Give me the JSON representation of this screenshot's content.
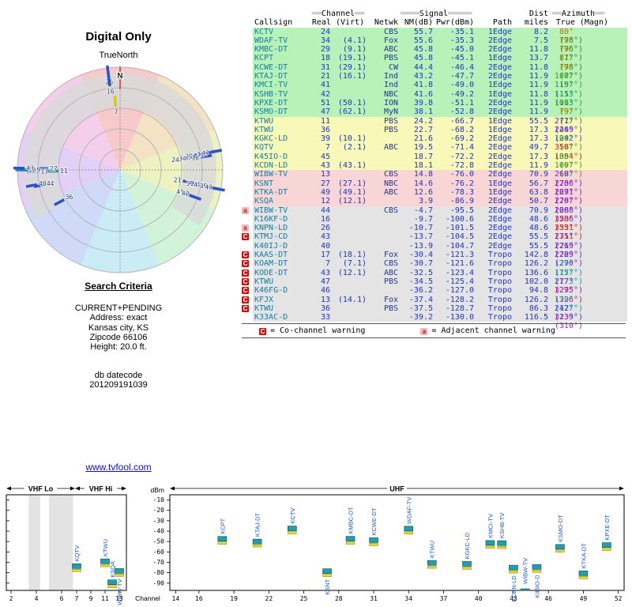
{
  "title": "Digital Only",
  "link": "www.tvfool.com",
  "search_criteria": {
    "heading": "Search Criteria",
    "lines": [
      "CURRENT+PENDING",
      "Address: exact",
      "Kansas city, KS",
      "Zipcode 66106",
      "Height: 20.0 ft."
    ],
    "datecode_label": "db datecode",
    "datecode": "201209191039"
  },
  "colors": {
    "callsign": "#0b7fae",
    "numeric": "#2233cc",
    "network": "#223399",
    "zones": {
      "g": "#b8f2b8",
      "y": "#f8f8b8",
      "p": "#f8d6d6",
      "e": "#e4e4e4"
    },
    "warn_red": "#cc1111",
    "warn_pink": "#f2b8b8",
    "bar_teal": "#1f9faf",
    "bar_yellow": "#e6d825",
    "marker_blue": "#2a52cc",
    "label_blue": "#1a56c4",
    "link_blue": "#1111cc",
    "header_fill_gray": "#9a9a9a"
  },
  "radar": {
    "true_north_label": "TrueNorth",
    "north_label": "N",
    "rings": 5,
    "ring_gray": "#d9d9d9",
    "sector_colors": [
      "#f6caca",
      "#f3e3c3",
      "#ecf3c0",
      "#d2f3d8",
      "#c9ecf6",
      "#cfd9f8",
      "#e2d0f6",
      "#f3cfec"
    ],
    "markers": [
      {
        "ch": "26",
        "az": 353,
        "r": 0.97
      },
      {
        "ch": "16",
        "az": 353,
        "r": 0.875
      },
      {
        "ch": "7",
        "az": 356,
        "r": 0.67,
        "color": "#d6c820"
      },
      {
        "ch": "24",
        "az": 80,
        "r": 0.655
      },
      {
        "ch": "34",
        "az": 80,
        "r": 0.725
      },
      {
        "ch": "29",
        "az": 79,
        "r": 0.79
      },
      {
        "ch": "18",
        "az": 81,
        "r": 0.85
      },
      {
        "ch": "31",
        "az": 79,
        "r": 0.905
      },
      {
        "ch": "47",
        "az": 79,
        "r": 0.955
      },
      {
        "ch": "21",
        "az": 100,
        "r": 0.675
      },
      {
        "ch": "41",
        "az": 110,
        "r": 0.73
      },
      {
        "ch": "42",
        "az": 110,
        "r": 0.785
      },
      {
        "ch": "51",
        "az": 101,
        "r": 0.8
      },
      {
        "ch": "45",
        "az": 101,
        "r": 0.875
      },
      {
        "ch": "39",
        "az": 101,
        "r": 0.935
      },
      {
        "ch": "43",
        "az": 101,
        "r": 0.985
      },
      {
        "ch": "11",
        "az": 269,
        "r": 0.655,
        "color": "#2292a8"
      },
      {
        "ch": "27",
        "az": 271,
        "r": 0.755
      },
      {
        "ch": "13",
        "az": 269,
        "r": 0.845,
        "color": "#2292a8"
      },
      {
        "ch": "49",
        "az": 270,
        "r": 0.92
      },
      {
        "ch": "12",
        "az": 270,
        "r": 0.965,
        "color": "#2292a8"
      },
      {
        "ch": "43",
        "az": 271,
        "r": 0.99
      },
      {
        "ch": "44",
        "az": 259,
        "r": 0.8
      },
      {
        "ch": "40",
        "az": 260,
        "r": 0.875
      },
      {
        "ch": "36",
        "az": 242,
        "r": 0.67
      }
    ]
  },
  "table": {
    "groups": {
      "channel": {
        "pre": "══",
        "label": "Channel",
        "post": "══"
      },
      "signal": {
        "pre": "════",
        "label": "Signal",
        "post": "═════"
      },
      "dist": "Dist",
      "azimuth": {
        "pre": "══",
        "label": "Azimuth",
        "post": "══"
      }
    },
    "columns": [
      "Callsign",
      "Real (Virt)",
      "Netwk",
      "NM(dB)",
      "Pwr(dBm)",
      "Path",
      "miles",
      "True (Magn)"
    ],
    "legend": [
      {
        "mark": "C",
        "text": "= Co-channel warning"
      },
      {
        "mark": "a",
        "text": "= Adjacent channel warning"
      }
    ],
    "rows": [
      {
        "w": "",
        "c": "KCTV",
        "r": "24",
        "v": "",
        "n": "CBS",
        "nm": "55.7",
        "pw": "-35.1",
        "pa": "1Edge",
        "mi": "8.2",
        "t": "80°",
        "m": "(78°)",
        "z": "g",
        "tc": "#b07a00",
        "mc": "#2e8b22"
      },
      {
        "w": "",
        "c": "WDAF-TV",
        "r": "34",
        "v": "(4.1)",
        "n": "Fox",
        "nm": "55.6",
        "pw": "-35.3",
        "pa": "2Edge",
        "mi": "7.5",
        "t": "79°",
        "m": "(76°)",
        "z": "g",
        "tc": "#b07a00",
        "mc": "#2e8b22"
      },
      {
        "w": "",
        "c": "KMBC-DT",
        "r": "29",
        "v": "(9.1)",
        "n": "ABC",
        "nm": "45.8",
        "pw": "-45.0",
        "pa": "2Edge",
        "mi": "11.8",
        "t": "79°",
        "m": "(77°)",
        "z": "g",
        "tc": "#b07a00",
        "mc": "#2e8b22"
      },
      {
        "w": "",
        "c": "KCPT",
        "r": "18",
        "v": "(19.1)",
        "n": "PBS",
        "nm": "45.8",
        "pw": "-45.1",
        "pa": "1Edge",
        "mi": "13.7",
        "t": "81°",
        "m": "(78°)",
        "z": "g",
        "tc": "#b07a00",
        "mc": "#2e8b22"
      },
      {
        "w": "",
        "c": "KCWE-DT",
        "r": "31",
        "v": "(29.1)",
        "n": "CW",
        "nm": "44.4",
        "pw": "-46.4",
        "pa": "2Edge",
        "mi": "11.8",
        "t": "79°",
        "m": "(77°)",
        "z": "g",
        "tc": "#b07a00",
        "mc": "#2e8b22"
      },
      {
        "w": "",
        "c": "KTAJ-DT",
        "r": "21",
        "v": "(16.1)",
        "n": "Ind",
        "nm": "43.2",
        "pw": "-47.7",
        "pa": "2Edge",
        "mi": "11.9",
        "t": "100°",
        "m": "(97°)",
        "z": "g",
        "tc": "#3f9a28",
        "mc": "#3f9a28"
      },
      {
        "w": "",
        "c": "KMCI-TV",
        "r": "41",
        "v": "",
        "n": "Ind",
        "nm": "41.8",
        "pw": "-49.0",
        "pa": "1Edge",
        "mi": "11.9",
        "t": "115°",
        "m": "(113°)",
        "z": "g",
        "tc": "#1f9a6a",
        "mc": "#1f9a6a"
      },
      {
        "w": "",
        "c": "KSHB-TV",
        "r": "42",
        "v": "",
        "n": "NBC",
        "nm": "41.6",
        "pw": "-49.2",
        "pa": "1Edge",
        "mi": "11.8",
        "t": "115°",
        "m": "(113°)",
        "z": "g",
        "tc": "#1f9a6a",
        "mc": "#1f9a6a"
      },
      {
        "w": "",
        "c": "KPXE-DT",
        "r": "51",
        "v": "(50.1)",
        "n": "ION",
        "nm": "39.8",
        "pw": "-51.1",
        "pa": "2Edge",
        "mi": "11.9",
        "t": "100°",
        "m": "(97°)",
        "z": "g",
        "tc": "#3f9a28",
        "mc": "#3f9a28"
      },
      {
        "w": "",
        "c": "KSMO-DT",
        "r": "47",
        "v": "(62.1)",
        "n": "MyN",
        "nm": "38.1",
        "pw": "-52.8",
        "pa": "2Edge",
        "mi": "11.9",
        "t": "79°",
        "m": "(77°)",
        "z": "g",
        "tc": "#b07a00",
        "mc": "#2e8b22"
      },
      {
        "w": "",
        "c": "KTWU",
        "r": "11",
        "v": "",
        "n": "PBS",
        "nm": "24.2",
        "pw": "-66.7",
        "pa": "1Edge",
        "mi": "55.5",
        "t": "271°",
        "m": "(269°)",
        "z": "y",
        "tc": "#7a1fd0",
        "mc": "#7a1fd0"
      },
      {
        "w": "",
        "c": "KTWU",
        "r": "36",
        "v": "",
        "n": "PBS",
        "nm": "22.7",
        "pw": "-68.2",
        "pa": "1Edge",
        "mi": "17.3",
        "t": "244°",
        "m": "(242°)",
        "z": "y",
        "tc": "#4438e0",
        "mc": "#4438e0"
      },
      {
        "w": "",
        "c": "KGKC-LD",
        "r": "39",
        "v": "(10.1)",
        "n": "",
        "nm": "21.6",
        "pw": "-69.2",
        "pa": "2Edge",
        "mi": "17.3",
        "t": "100°",
        "m": "(97°)",
        "z": "y",
        "tc": "#3f9a28",
        "mc": "#3f9a28"
      },
      {
        "w": "",
        "c": "KQTV",
        "r": "7",
        "v": "(2.1)",
        "n": "ABC",
        "nm": "19.5",
        "pw": "-71.4",
        "pa": "2Edge",
        "mi": "49.7",
        "t": "356°",
        "m": "(354°)",
        "z": "y",
        "tc": "#d42222",
        "mc": "#d42222"
      },
      {
        "w": "",
        "c": "K45IO-D",
        "r": "45",
        "v": "",
        "n": "",
        "nm": "18.7",
        "pw": "-72.2",
        "pa": "2Edge",
        "mi": "17.3",
        "t": "100°",
        "m": "(97°)",
        "z": "y",
        "tc": "#3f9a28",
        "mc": "#3f9a28"
      },
      {
        "w": "",
        "c": "KCDN-LD",
        "r": "43",
        "v": "(43.1)",
        "n": "",
        "nm": "18.1",
        "pw": "-72.8",
        "pa": "2Edge",
        "mi": "11.9",
        "t": "100°",
        "m": "(97°)",
        "z": "y",
        "tc": "#3f9a28",
        "mc": "#3f9a28"
      },
      {
        "w": "",
        "c": "WIBW-TV",
        "r": "13",
        "v": "",
        "n": "CBS",
        "nm": "14.8",
        "pw": "-76.0",
        "pa": "2Edge",
        "mi": "70.9",
        "t": "268°",
        "m": "(266°)",
        "z": "p",
        "tc": "#7a1fd0",
        "mc": "#7a1fd0"
      },
      {
        "w": "",
        "c": "KSNT",
        "r": "27",
        "v": "(27.1)",
        "n": "NBC",
        "nm": "14.6",
        "pw": "-76.2",
        "pa": "1Edge",
        "mi": "56.7",
        "t": "273°",
        "m": "(271°)",
        "z": "p",
        "tc": "#7a1fd0",
        "mc": "#7a1fd0"
      },
      {
        "w": "",
        "c": "KTKA-DT",
        "r": "49",
        "v": "(49.1)",
        "n": "ABC",
        "nm": "12.6",
        "pw": "-78.3",
        "pa": "1Edge",
        "mi": "63.8",
        "t": "269°",
        "m": "(267°)",
        "z": "p",
        "tc": "#7a1fd0",
        "mc": "#7a1fd0"
      },
      {
        "w": "",
        "c": "KSQA",
        "r": "12",
        "v": "(12.1)",
        "n": "",
        "nm": "3.9",
        "pw": "-86.9",
        "pa": "2Edge",
        "mi": "50.7",
        "t": "270°",
        "m": "(268°)",
        "z": "p",
        "tc": "#7a1fd0",
        "mc": "#7a1fd0"
      },
      {
        "w": "a",
        "c": "WIBW-TV",
        "r": "44",
        "v": "",
        "n": "CBS",
        "nm": "-4.7",
        "pw": "-95.5",
        "pa": "2Edge",
        "mi": "70.9",
        "t": "268°",
        "m": "(266°)",
        "z": "e",
        "tc": "#7a1fd0",
        "mc": "#7a1fd0"
      },
      {
        "w": "",
        "c": "K16KF-D",
        "r": "16",
        "v": "",
        "n": "",
        "nm": "-9.7",
        "pw": "-100.6",
        "pa": "2Edge",
        "mi": "48.6",
        "t": "353°",
        "m": "(351°)",
        "z": "e",
        "tc": "#d42222",
        "mc": "#d42222"
      },
      {
        "w": "a",
        "c": "KNPN-LD",
        "r": "26",
        "v": "",
        "n": "",
        "nm": "-10.7",
        "pw": "-101.5",
        "pa": "2Edge",
        "mi": "48.6",
        "t": "353°",
        "m": "(351°)",
        "z": "e",
        "tc": "#d42222",
        "mc": "#d42222"
      },
      {
        "w": "C",
        "c": "KTMJ-CD",
        "r": "43",
        "v": "",
        "n": "",
        "nm": "-13.7",
        "pw": "-104.5",
        "pa": "2Edge",
        "mi": "55.5",
        "t": "271°",
        "m": "(269°)",
        "z": "e",
        "tc": "#7a1fd0",
        "mc": "#7a1fd0"
      },
      {
        "w": "",
        "c": "K40IJ-D",
        "r": "40",
        "v": "",
        "n": "",
        "nm": "-13.9",
        "pw": "-104.7",
        "pa": "2Edge",
        "mi": "55.5",
        "t": "271°",
        "m": "(269°)",
        "z": "e",
        "tc": "#7a1fd0",
        "mc": "#7a1fd0"
      },
      {
        "w": "C",
        "c": "KAAS-DT",
        "r": "17",
        "v": "(18.1)",
        "n": "Fox",
        "nm": "-30.4",
        "pw": "-121.3",
        "pa": "Tropo",
        "mi": "142.8",
        "t": "272°",
        "m": "(270°)",
        "z": "e",
        "tc": "#7a1fd0",
        "mc": "#7a1fd0"
      },
      {
        "w": "C",
        "c": "KOAM-DT",
        "r": "7",
        "v": "(7.1)",
        "n": "CBS",
        "nm": "-30.7",
        "pw": "-121.6",
        "pa": "Tropo",
        "mi": "126.2",
        "t": "179°",
        "m": "(177°)",
        "z": "e",
        "tc": "#0f9a9a",
        "mc": "#0f9a9a"
      },
      {
        "w": "C",
        "c": "KODE-DT",
        "r": "43",
        "v": "(12.1)",
        "n": "ABC",
        "nm": "-32.5",
        "pw": "-123.4",
        "pa": "Tropo",
        "mi": "136.6",
        "t": "175°",
        "m": "(173°)",
        "z": "e",
        "tc": "#0f9a9a",
        "mc": "#0f9a9a"
      },
      {
        "w": "C",
        "c": "KTWU",
        "r": "47",
        "v": "",
        "n": "PBS",
        "nm": "-34.5",
        "pw": "-125.4",
        "pa": "Tropo",
        "mi": "102.0",
        "t": "277°",
        "m": "(275°)",
        "z": "e",
        "tc": "#7a1fd0",
        "mc": "#7a1fd0"
      },
      {
        "w": "C",
        "c": "K46FG-D",
        "r": "46",
        "v": "",
        "n": "",
        "nm": "-36.2",
        "pw": "-127.0",
        "pa": "Tropo",
        "mi": "94.8",
        "t": "329°",
        "m": "(326°)",
        "z": "e",
        "tc": "#c0207a",
        "mc": "#c0207a"
      },
      {
        "w": "C",
        "c": "KFJX",
        "r": "13",
        "v": "(14.1)",
        "n": "Fox",
        "nm": "-37.4",
        "pw": "-128.2",
        "pa": "Tropo",
        "mi": "126.2",
        "t": "179°",
        "m": "(177°)",
        "z": "e",
        "tc": "#0f9a9a",
        "mc": "#0f9a9a"
      },
      {
        "w": "C",
        "c": "KTWU",
        "r": "36",
        "v": "",
        "n": "PBS",
        "nm": "-37.5",
        "pw": "-128.7",
        "pa": "Tropo",
        "mi": "86.3",
        "t": "242°",
        "m": "(239°)",
        "z": "e",
        "tc": "#4438e0",
        "mc": "#4438e0"
      },
      {
        "w": "",
        "c": "K33AC-D",
        "r": "33",
        "v": "",
        "n": "",
        "nm": "-39.2",
        "pw": "-130.0",
        "pa": "Tropo",
        "mi": "116.5",
        "t": "313°",
        "m": "(310°)",
        "z": "e",
        "tc": "#b022b0",
        "mc": "#b022b0"
      }
    ]
  },
  "chart_data": {
    "type": "bar",
    "title": "Digital Only",
    "ylabel": "dBm",
    "xlabel": "Channel",
    "ylim": [
      -97,
      -5
    ],
    "y_ticks": [
      -10,
      -20,
      -30,
      -40,
      -50,
      -60,
      -70,
      -80,
      -90
    ],
    "bands": [
      {
        "label": "VHF Lo"
      },
      {
        "label": "VHF Hi"
      },
      {
        "label": "UHF"
      }
    ],
    "vhf_lo_ticks": [
      2,
      4,
      6
    ],
    "vhf_hi_ticks": [
      7,
      9,
      11,
      13
    ],
    "uhf_ticks": [
      14,
      16,
      19,
      22,
      25,
      28,
      31,
      34,
      37,
      40,
      43,
      46,
      49,
      52
    ],
    "gray_bands_lo": [
      [
        3.4,
        4.3
      ],
      [
        5.0,
        6.9
      ]
    ],
    "points": [
      {
        "callsign": "KQTV",
        "ch": 7,
        "dbm": -71.4
      },
      {
        "callsign": "KTWU",
        "ch": 11,
        "dbm": -66.7
      },
      {
        "callsign": "KSQA",
        "ch": 12,
        "dbm": -86.9
      },
      {
        "callsign": "WIBW-TV",
        "ch": 13,
        "dbm": -76.0,
        "label_below": true
      },
      {
        "callsign": "KCPT",
        "ch": 18,
        "dbm": -45.1
      },
      {
        "callsign": "KTAJ-DT",
        "ch": 21,
        "dbm": -47.7
      },
      {
        "callsign": "KCTV",
        "ch": 24,
        "dbm": -35.1
      },
      {
        "callsign": "KSNT",
        "ch": 27,
        "dbm": -76.2,
        "label_below": true
      },
      {
        "callsign": "KMBC-DT",
        "ch": 29,
        "dbm": -45.0
      },
      {
        "callsign": "KCWE-DT",
        "ch": 31,
        "dbm": -46.4
      },
      {
        "callsign": "WDAF-TV",
        "ch": 34,
        "dbm": -35.3
      },
      {
        "callsign": "KTWU",
        "ch": 36,
        "dbm": -68.2
      },
      {
        "callsign": "KGKC-LD",
        "ch": 39,
        "dbm": -69.2
      },
      {
        "callsign": "KMCI-TV",
        "ch": 41,
        "dbm": -49.0
      },
      {
        "callsign": "KSHB-TV",
        "ch": 42,
        "dbm": -49.2
      },
      {
        "callsign": "KCDN-LD",
        "ch": 43,
        "dbm": -72.8,
        "label_below": true
      },
      {
        "callsign": "WIBW-TV",
        "ch": 44,
        "dbm": -95.5
      },
      {
        "callsign": "K45IO-D",
        "ch": 45,
        "dbm": -72.2,
        "label_below": true
      },
      {
        "callsign": "KSMO-DT",
        "ch": 47,
        "dbm": -52.8
      },
      {
        "callsign": "KTKA-DT",
        "ch": 49,
        "dbm": -78.3
      },
      {
        "callsign": "KPXE-DT",
        "ch": 51,
        "dbm": -51.1
      }
    ]
  }
}
